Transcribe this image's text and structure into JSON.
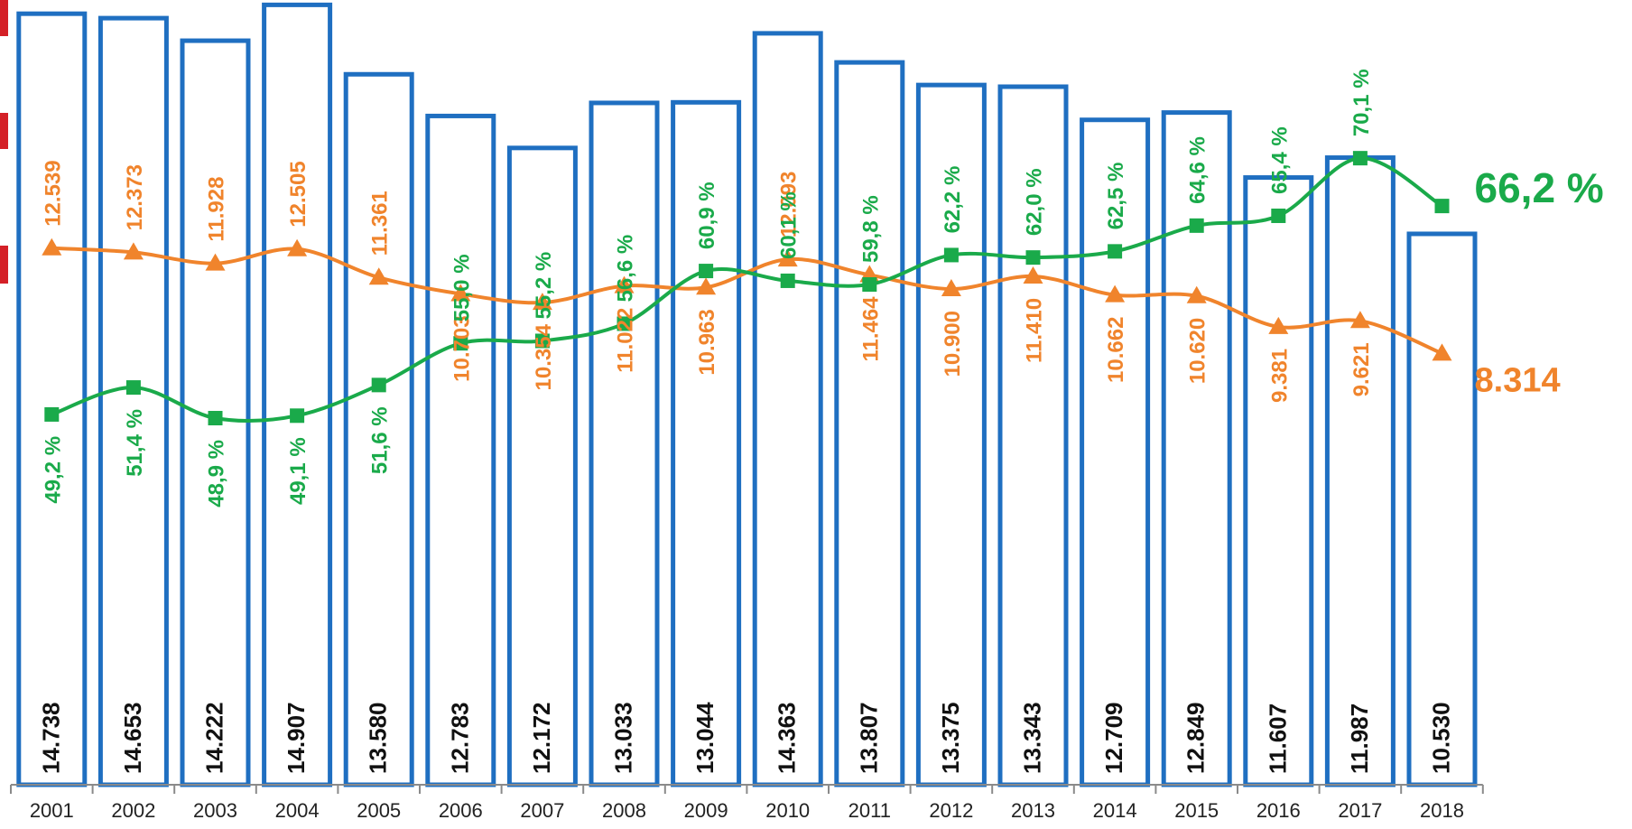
{
  "chart_data": {
    "type": "bar",
    "categories": [
      "2001",
      "2002",
      "2003",
      "2004",
      "2005",
      "2006",
      "2007",
      "2008",
      "2009",
      "2010",
      "2011",
      "2012",
      "2013",
      "2014",
      "2015",
      "2016",
      "2017",
      "2018"
    ],
    "ylim": [
      0,
      15000
    ],
    "grid": false,
    "series": [
      {
        "kind": "bar",
        "color": "#1f6fc1",
        "values": [
          14738,
          14653,
          14222,
          14907,
          13580,
          12783,
          12172,
          13033,
          13044,
          14363,
          13807,
          13375,
          13343,
          12709,
          12849,
          11607,
          11987,
          10530
        ],
        "labels": [
          "14.738",
          "14.653",
          "14.222",
          "14.907",
          "13.580",
          "12.783",
          "12.172",
          "13.033",
          "13.044",
          "14.363",
          "13.807",
          "13.375",
          "13.343",
          "12.709",
          "12.849",
          "11.607",
          "11.987",
          "10.530"
        ]
      },
      {
        "kind": "line",
        "color": "#f0842c",
        "marker": "triangle",
        "ylim": [
          -9000,
          22500
        ],
        "values": [
          12539,
          12373,
          11928,
          12505,
          11361,
          10703,
          10354,
          11022,
          10963,
          12093,
          11464,
          10900,
          11410,
          10662,
          10620,
          9381,
          9621,
          8314
        ],
        "labels": [
          "12.539",
          "12.373",
          "11.928",
          "12.505",
          "11.361",
          "10.703",
          "10.354",
          "11.022",
          "10.963",
          "12.093",
          "11.464",
          "10.900",
          "11.410",
          "10.662",
          "10.620",
          "9.381",
          "9.621",
          "8.314"
        ],
        "label_side": [
          "above",
          "above",
          "above",
          "above",
          "above",
          "below",
          "below",
          "below",
          "below",
          "above",
          "below",
          "below",
          "below",
          "below",
          "below",
          "below",
          "below",
          "right"
        ]
      },
      {
        "kind": "line",
        "color": "#1aaa4a",
        "marker": "square",
        "ylim": [
          19,
          83
        ],
        "values": [
          49.2,
          51.4,
          48.9,
          49.1,
          51.6,
          55.0,
          55.2,
          56.6,
          60.9,
          60.1,
          59.8,
          62.2,
          62.0,
          62.5,
          64.6,
          65.4,
          70.1,
          66.2
        ],
        "labels": [
          "49,2 %",
          "51,4 %",
          "48,9 %",
          "49,1 %",
          "51,6 %",
          "55,0 %",
          "55,2 %",
          "56,6 %",
          "60,9 %",
          "60,1 %",
          "59,8 %",
          "62,2 %",
          "62,0 %",
          "62,5 %",
          "64,6 %",
          "65,4 %",
          "70,1 %",
          "66,2 %"
        ],
        "label_side": [
          "below",
          "below",
          "below",
          "below",
          "below",
          "above",
          "above",
          "above",
          "above",
          "above",
          "above",
          "above",
          "above",
          "above",
          "above",
          "above",
          "above",
          "right"
        ]
      }
    ]
  }
}
